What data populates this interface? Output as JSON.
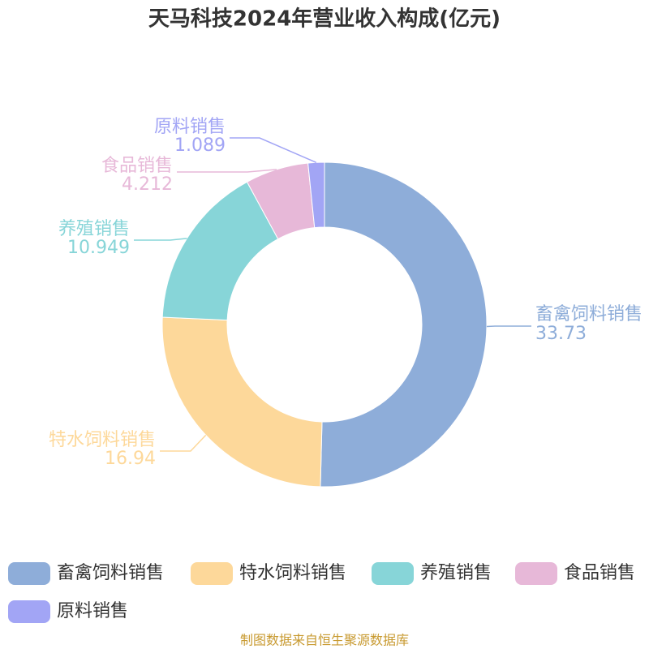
{
  "chart_data": {
    "type": "donut",
    "title": "天马科技2024年营业收入构成(亿元)",
    "categories": [
      "畜禽饲料销售",
      "特水饲料销售",
      "养殖销售",
      "食品销售",
      "原料销售"
    ],
    "values": [
      33.73,
      16.94,
      10.949,
      4.212,
      1.089
    ],
    "colors": [
      "#8eadd9",
      "#fdd89a",
      "#87d5d8",
      "#e7b8d8",
      "#a2a5f5"
    ],
    "source": "制图数据来自恒生聚源数据库"
  }
}
